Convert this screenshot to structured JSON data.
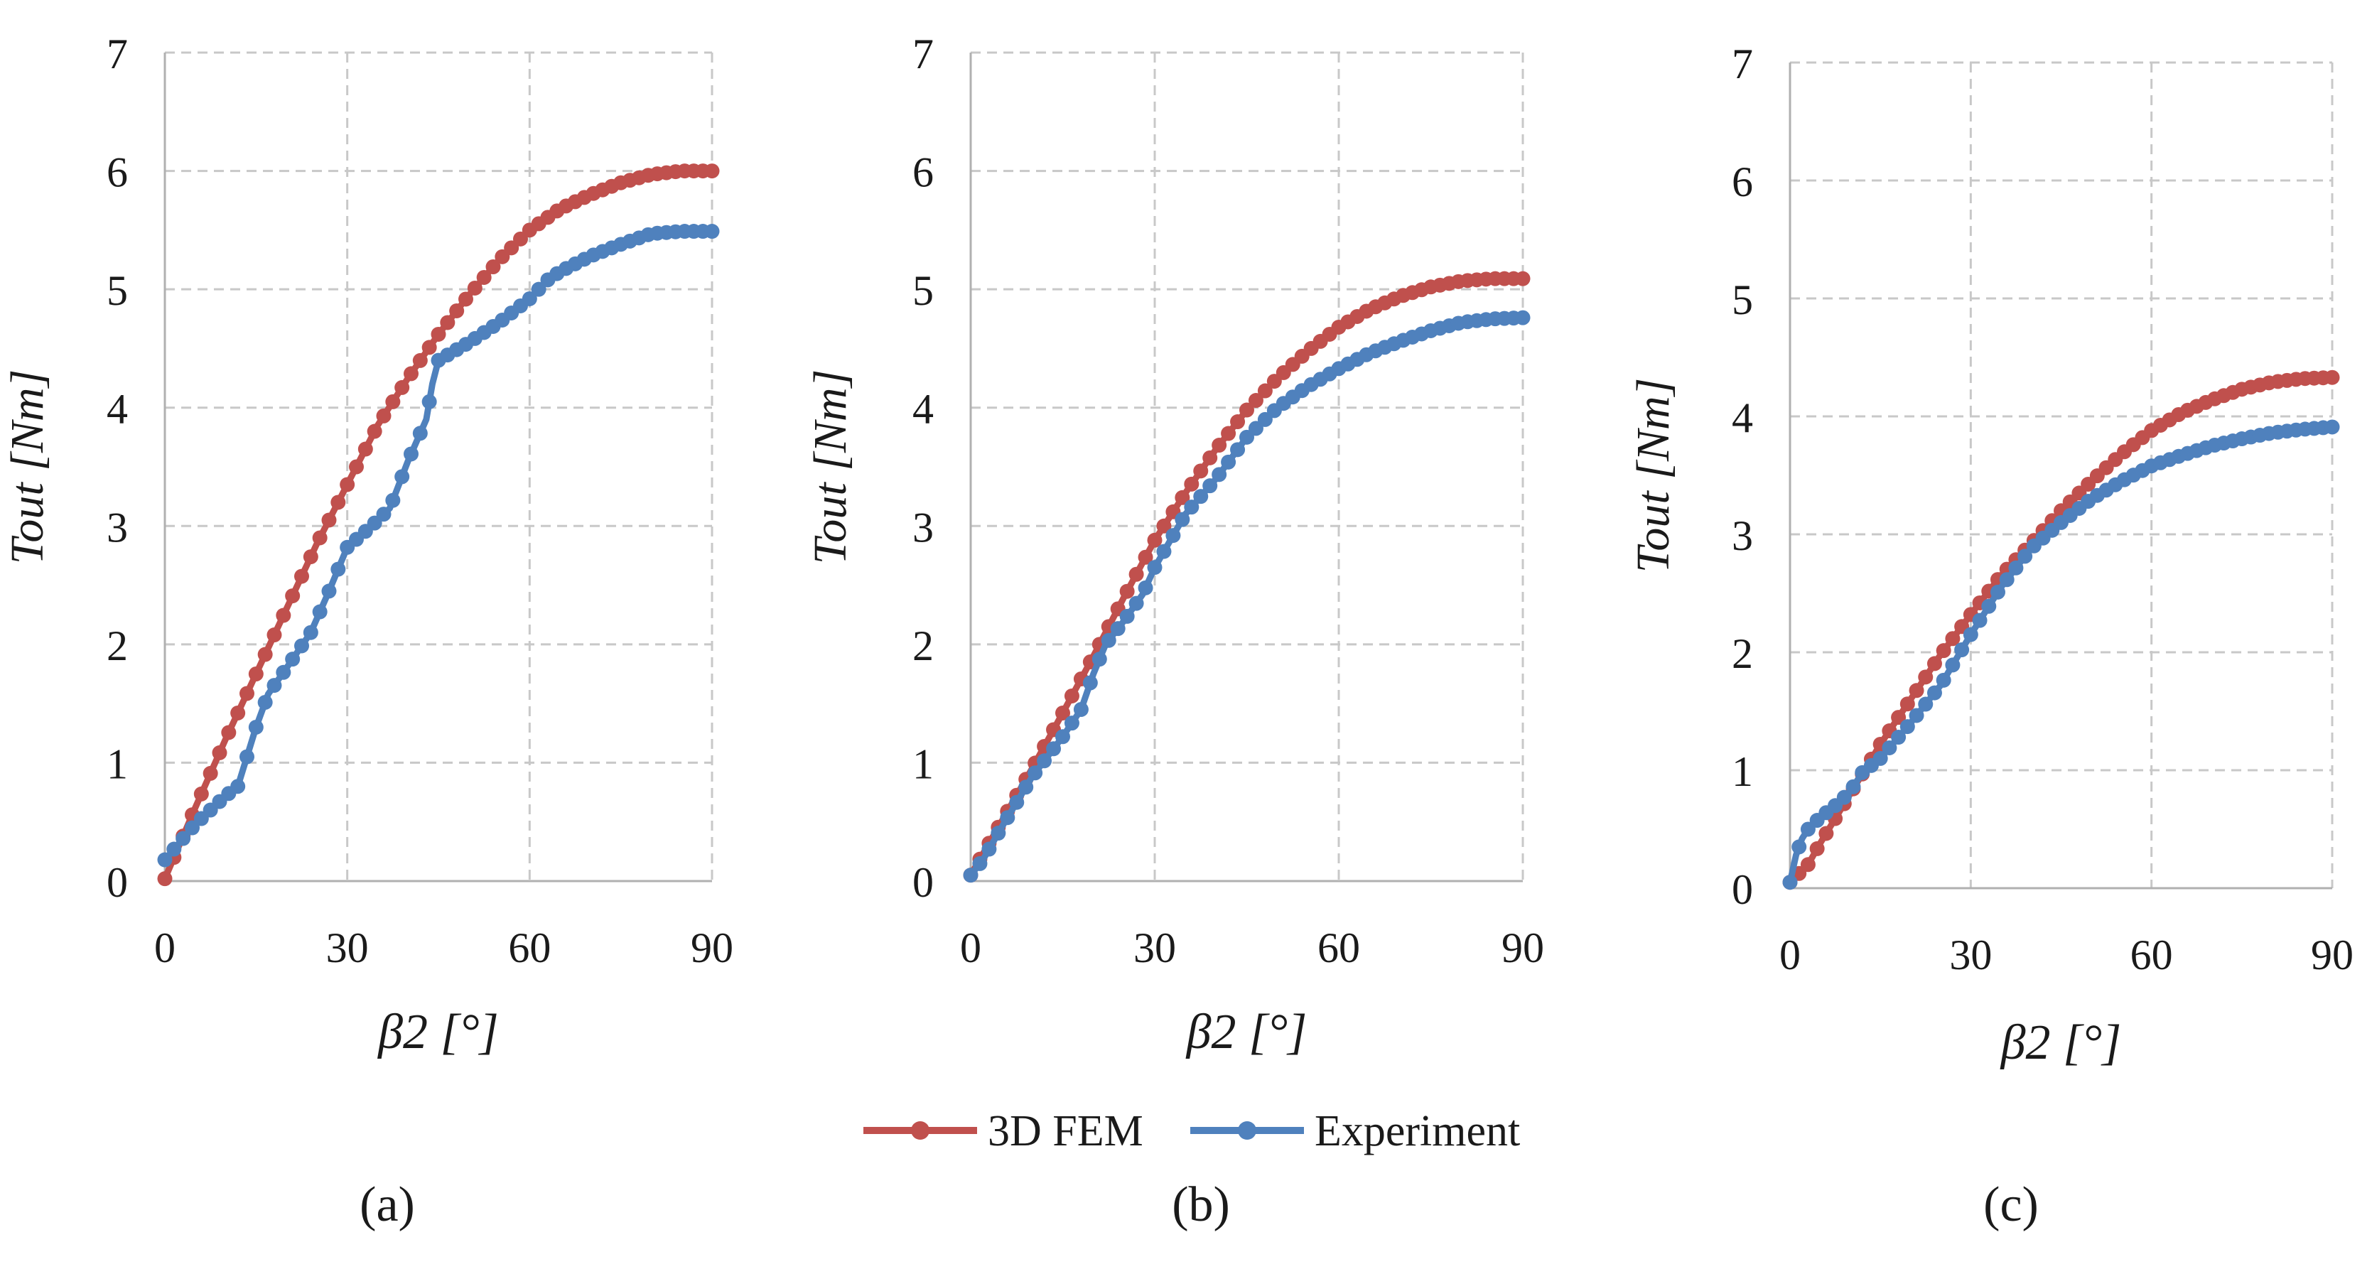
{
  "series_styles": {
    "3D FEM": {
      "color": "#C0504D"
    },
    "Experiment": {
      "color": "#4F81BD"
    }
  },
  "legend": {
    "items": [
      "3D FEM",
      "Experiment"
    ],
    "position": "bottom-center"
  },
  "chart_data": [
    {
      "type": "line",
      "panel_label": "(a)",
      "xlabel": "β2 [°]",
      "ylabel": "Tout [Nm]",
      "xlim": [
        0,
        90
      ],
      "ylim": [
        0,
        7
      ],
      "xticks": [
        0,
        30,
        60,
        90
      ],
      "yticks": [
        0,
        1,
        2,
        3,
        4,
        5,
        6,
        7
      ],
      "grid": true,
      "series": [
        {
          "name": "3D FEM",
          "x": [
            0,
            5,
            10,
            15,
            20,
            25,
            30,
            35,
            40,
            45,
            50,
            55,
            60,
            65,
            70,
            75,
            80,
            85,
            90
          ],
          "values": [
            0.02,
            0.62,
            1.2,
            1.75,
            2.3,
            2.85,
            3.35,
            3.85,
            4.25,
            4.62,
            4.95,
            5.25,
            5.5,
            5.68,
            5.8,
            5.9,
            5.97,
            6.0,
            6.0
          ]
        },
        {
          "name": "Experiment",
          "x": [
            0,
            5,
            10,
            12,
            15,
            17,
            20,
            24,
            27,
            30,
            34,
            37,
            40,
            43,
            44,
            45,
            50,
            55,
            60,
            63,
            65,
            70,
            75,
            80,
            85,
            90
          ],
          "values": [
            0.18,
            0.48,
            0.72,
            0.8,
            1.3,
            1.58,
            1.8,
            2.1,
            2.45,
            2.82,
            3.0,
            3.15,
            3.55,
            3.9,
            4.2,
            4.4,
            4.55,
            4.72,
            4.92,
            5.08,
            5.15,
            5.28,
            5.38,
            5.47,
            5.49,
            5.49
          ]
        }
      ]
    },
    {
      "type": "line",
      "panel_label": "(b)",
      "xlabel": "β2 [°]",
      "ylabel": "Tout [Nm]",
      "xlim": [
        0,
        90
      ],
      "ylim": [
        0,
        7
      ],
      "xticks": [
        0,
        30,
        60,
        90
      ],
      "yticks": [
        0,
        1,
        2,
        3,
        4,
        5,
        6,
        7
      ],
      "grid": true,
      "series": [
        {
          "name": "3D FEM",
          "x": [
            0,
            5,
            10,
            15,
            20,
            25,
            30,
            35,
            40,
            45,
            50,
            55,
            60,
            65,
            70,
            75,
            80,
            85,
            90
          ],
          "values": [
            0.05,
            0.5,
            0.95,
            1.42,
            1.9,
            2.4,
            2.88,
            3.28,
            3.65,
            3.98,
            4.25,
            4.48,
            4.68,
            4.83,
            4.94,
            5.02,
            5.07,
            5.09,
            5.09
          ]
        },
        {
          "name": "Experiment",
          "x": [
            0,
            2,
            5,
            10,
            15,
            18,
            20,
            22,
            25,
            28,
            30,
            35,
            40,
            45,
            50,
            55,
            60,
            65,
            70,
            75,
            80,
            85,
            90
          ],
          "values": [
            0.05,
            0.18,
            0.45,
            0.88,
            1.22,
            1.45,
            1.75,
            2.0,
            2.2,
            2.42,
            2.65,
            3.1,
            3.4,
            3.75,
            4.0,
            4.18,
            4.33,
            4.46,
            4.56,
            4.65,
            4.72,
            4.75,
            4.76
          ]
        }
      ]
    },
    {
      "type": "line",
      "panel_label": "(c)",
      "xlabel": "β2 [°]",
      "ylabel": "Tout [Nm]",
      "xlim": [
        0,
        90
      ],
      "ylim": [
        0,
        7
      ],
      "xticks": [
        0,
        30,
        60,
        90
      ],
      "yticks": [
        0,
        1,
        2,
        3,
        4,
        5,
        6,
        7
      ],
      "grid": true,
      "series": [
        {
          "name": "3D FEM",
          "x": [
            0,
            3,
            5,
            10,
            15,
            20,
            25,
            30,
            35,
            40,
            45,
            50,
            55,
            60,
            65,
            70,
            75,
            80,
            85,
            90
          ],
          "values": [
            0.05,
            0.2,
            0.38,
            0.8,
            1.22,
            1.6,
            1.98,
            2.32,
            2.65,
            2.92,
            3.2,
            3.45,
            3.68,
            3.88,
            4.03,
            4.14,
            4.23,
            4.29,
            4.32,
            4.33
          ]
        },
        {
          "name": "Experiment",
          "x": [
            0,
            1,
            2,
            3,
            5,
            8,
            10,
            12,
            15,
            20,
            25,
            30,
            35,
            40,
            45,
            50,
            55,
            60,
            65,
            70,
            75,
            80,
            85,
            90
          ],
          "values": [
            0.05,
            0.28,
            0.42,
            0.5,
            0.6,
            0.72,
            0.82,
            0.98,
            1.1,
            1.4,
            1.72,
            2.15,
            2.55,
            2.88,
            3.1,
            3.3,
            3.45,
            3.58,
            3.67,
            3.75,
            3.81,
            3.86,
            3.89,
            3.91
          ]
        }
      ]
    }
  ]
}
